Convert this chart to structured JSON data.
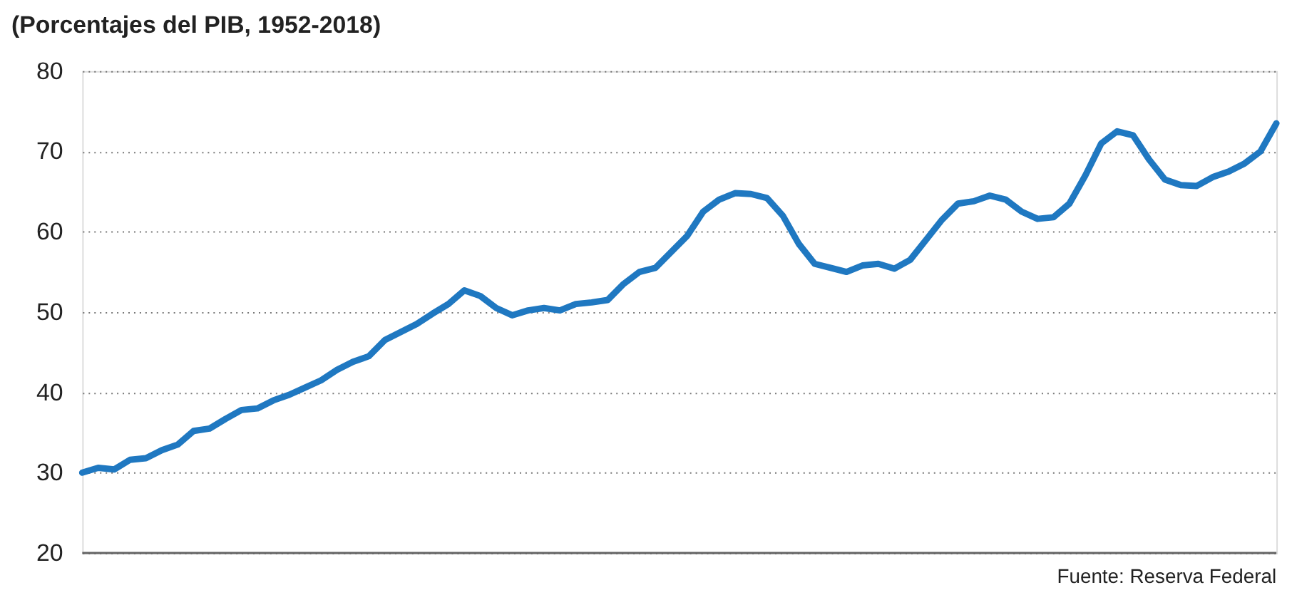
{
  "chart_data": {
    "type": "line",
    "subtitle": "(Porcentajes del PIB, 1952-2018)",
    "categories": [
      null,
      null,
      null,
      null,
      null,
      null,
      null,
      null,
      null,
      null,
      null,
      null,
      null,
      null,
      null,
      null,
      null,
      null,
      null,
      null,
      null,
      null,
      null,
      null,
      null,
      null,
      null,
      null,
      null,
      null,
      null,
      null,
      null,
      null,
      null,
      null,
      null,
      null,
      null,
      null,
      null,
      null,
      null,
      null,
      null,
      null,
      null,
      null,
      null,
      null,
      null,
      null,
      null,
      null,
      null,
      null,
      null,
      null,
      null,
      null,
      null,
      null,
      null,
      null,
      null,
      null,
      null,
      null,
      null,
      null,
      null,
      null,
      null,
      null,
      null,
      null
    ],
    "series": [
      {
        "color": "#1f78c1",
        "values": [
          30.0,
          30.6,
          30.4,
          31.6,
          31.8,
          32.8,
          33.5,
          35.2,
          35.5,
          36.7,
          37.8,
          38.0,
          39.0,
          39.7,
          40.6,
          41.5,
          42.8,
          43.8,
          44.5,
          46.5,
          47.5,
          48.5,
          49.8,
          51.0,
          52.7,
          52.0,
          50.5,
          49.6,
          50.2,
          50.5,
          50.2,
          51.0,
          51.2,
          51.5,
          53.5,
          55.0,
          55.5,
          57.5,
          59.5,
          62.5,
          64.0,
          64.8,
          64.7,
          64.2,
          62.0,
          58.5,
          56.0,
          55.5,
          55.0,
          55.8,
          56.0,
          55.4,
          56.5,
          59.0,
          61.5,
          63.5,
          63.8,
          64.5,
          64.0,
          62.5,
          61.6,
          61.8,
          63.5,
          67.0,
          71.0,
          72.5,
          72.0,
          69.0,
          66.5,
          65.8,
          65.7,
          66.8,
          67.5,
          68.5,
          70.0,
          73.5
        ]
      }
    ],
    "ylim": [
      20,
      80
    ],
    "yticks": [
      20,
      30,
      40,
      50,
      60,
      70,
      80
    ],
    "grid": "y",
    "line_style": "solid",
    "marker": "none",
    "annotations": [
      "Fuente: Reserva Federal"
    ]
  }
}
